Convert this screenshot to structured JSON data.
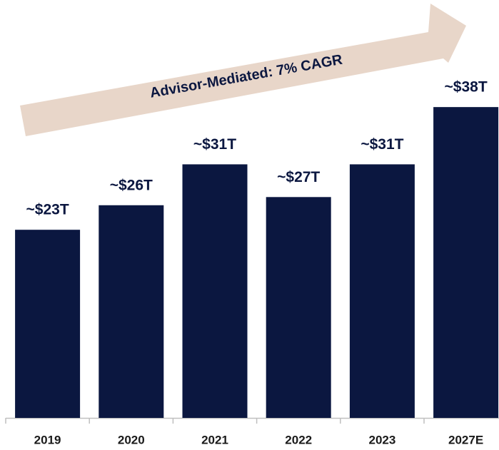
{
  "chart_data": {
    "type": "bar",
    "annotation": "Advisor-Mediated: 7% CAGR",
    "categories": [
      "2019",
      "2020",
      "2021",
      "2022",
      "2023",
      "2027E"
    ],
    "values": [
      23,
      26,
      31,
      27,
      31,
      38
    ],
    "value_labels": [
      "~$23T",
      "~$26T",
      "~$31T",
      "~$27T",
      "~$31T",
      "~$38T"
    ],
    "color": "#0b1740"
  }
}
